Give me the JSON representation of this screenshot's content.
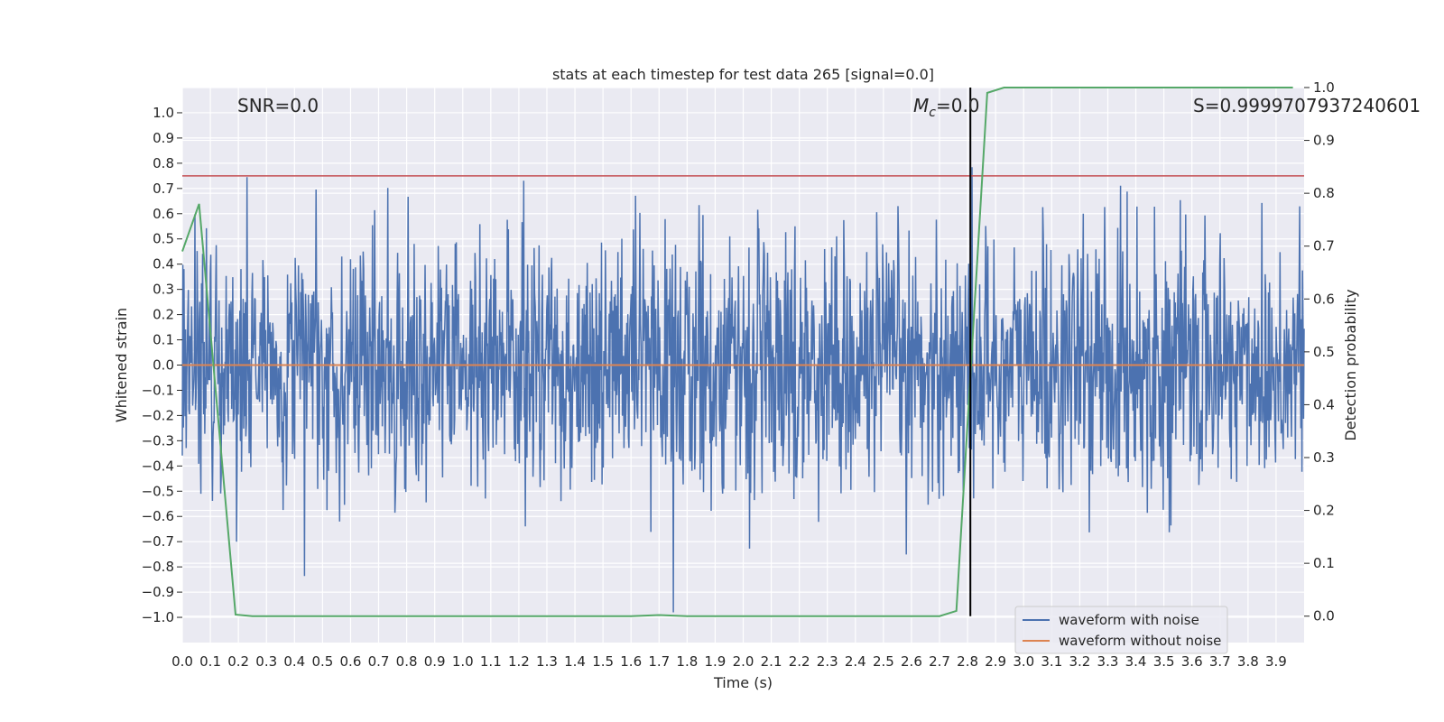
{
  "chart_data": {
    "type": "line",
    "title": "stats at each timestep for test data 265 [signal=0.0]",
    "xlabel": "Time (s)",
    "ylabel": "Whitened strain",
    "y2label": "Detection probability",
    "xlim": [
      0.0,
      4.0
    ],
    "ylim": [
      -1.1,
      1.1
    ],
    "y2lim": [
      -0.05,
      1.0
    ],
    "x_ticks": [
      "0.0",
      "0.1",
      "0.2",
      "0.3",
      "0.4",
      "0.5",
      "0.6",
      "0.7",
      "0.8",
      "0.9",
      "1.0",
      "1.1",
      "1.2",
      "1.3",
      "1.4",
      "1.5",
      "1.6",
      "1.7",
      "1.8",
      "1.9",
      "2.0",
      "2.1",
      "2.2",
      "2.3",
      "2.4",
      "2.5",
      "2.6",
      "2.7",
      "2.8",
      "2.9",
      "3.0",
      "3.1",
      "3.2",
      "3.3",
      "3.4",
      "3.5",
      "3.6",
      "3.7",
      "3.8",
      "3.9"
    ],
    "y_ticks": [
      "1.0",
      "0.9",
      "0.8",
      "0.7",
      "0.6",
      "0.5",
      "0.4",
      "0.3",
      "0.2",
      "0.1",
      "0.0",
      "−0.1",
      "−0.2",
      "−0.3",
      "−0.4",
      "−0.5",
      "−0.6",
      "−0.7",
      "−0.8",
      "−0.9",
      "−1.0"
    ],
    "y2_ticks": [
      "1.0",
      "0.9",
      "0.8",
      "0.7",
      "0.6",
      "0.5",
      "0.4",
      "0.3",
      "0.2",
      "0.1",
      "0.0"
    ],
    "annotations": {
      "snr": "SNR=0.0",
      "mc_symbol": "M",
      "mc_sub": "c",
      "mc_value": "=0.0",
      "s": "S=0.9999707937240601"
    },
    "threshold_line": {
      "y": 0.75,
      "color": "#c44e52"
    },
    "marker_line": {
      "x": 2.81,
      "color": "#000000"
    },
    "series": [
      {
        "name": "waveform with noise",
        "color": "#4c72b0",
        "description": "random Gaussian-like whitened noise, approx std 0.25, peaks to about ±0.95",
        "samples": 2048
      },
      {
        "name": "waveform without noise",
        "color": "#dd8452",
        "x": [
          0.0,
          4.0
        ],
        "values": [
          0.0,
          0.0
        ]
      },
      {
        "name": "detection probability",
        "color": "#55a868",
        "axis": "right",
        "x": [
          0.0,
          0.06,
          0.19,
          0.25,
          1.6,
          1.7,
          1.8,
          2.7,
          2.76,
          2.87,
          2.93,
          3.96
        ],
        "values": [
          0.69,
          0.78,
          0.003,
          0.0,
          0.0,
          0.002,
          0.0,
          0.0,
          0.01,
          0.99,
          1.0,
          1.0
        ]
      }
    ],
    "legend": {
      "position": "lower-right",
      "entries": [
        "waveform with noise",
        "waveform without noise"
      ]
    }
  }
}
